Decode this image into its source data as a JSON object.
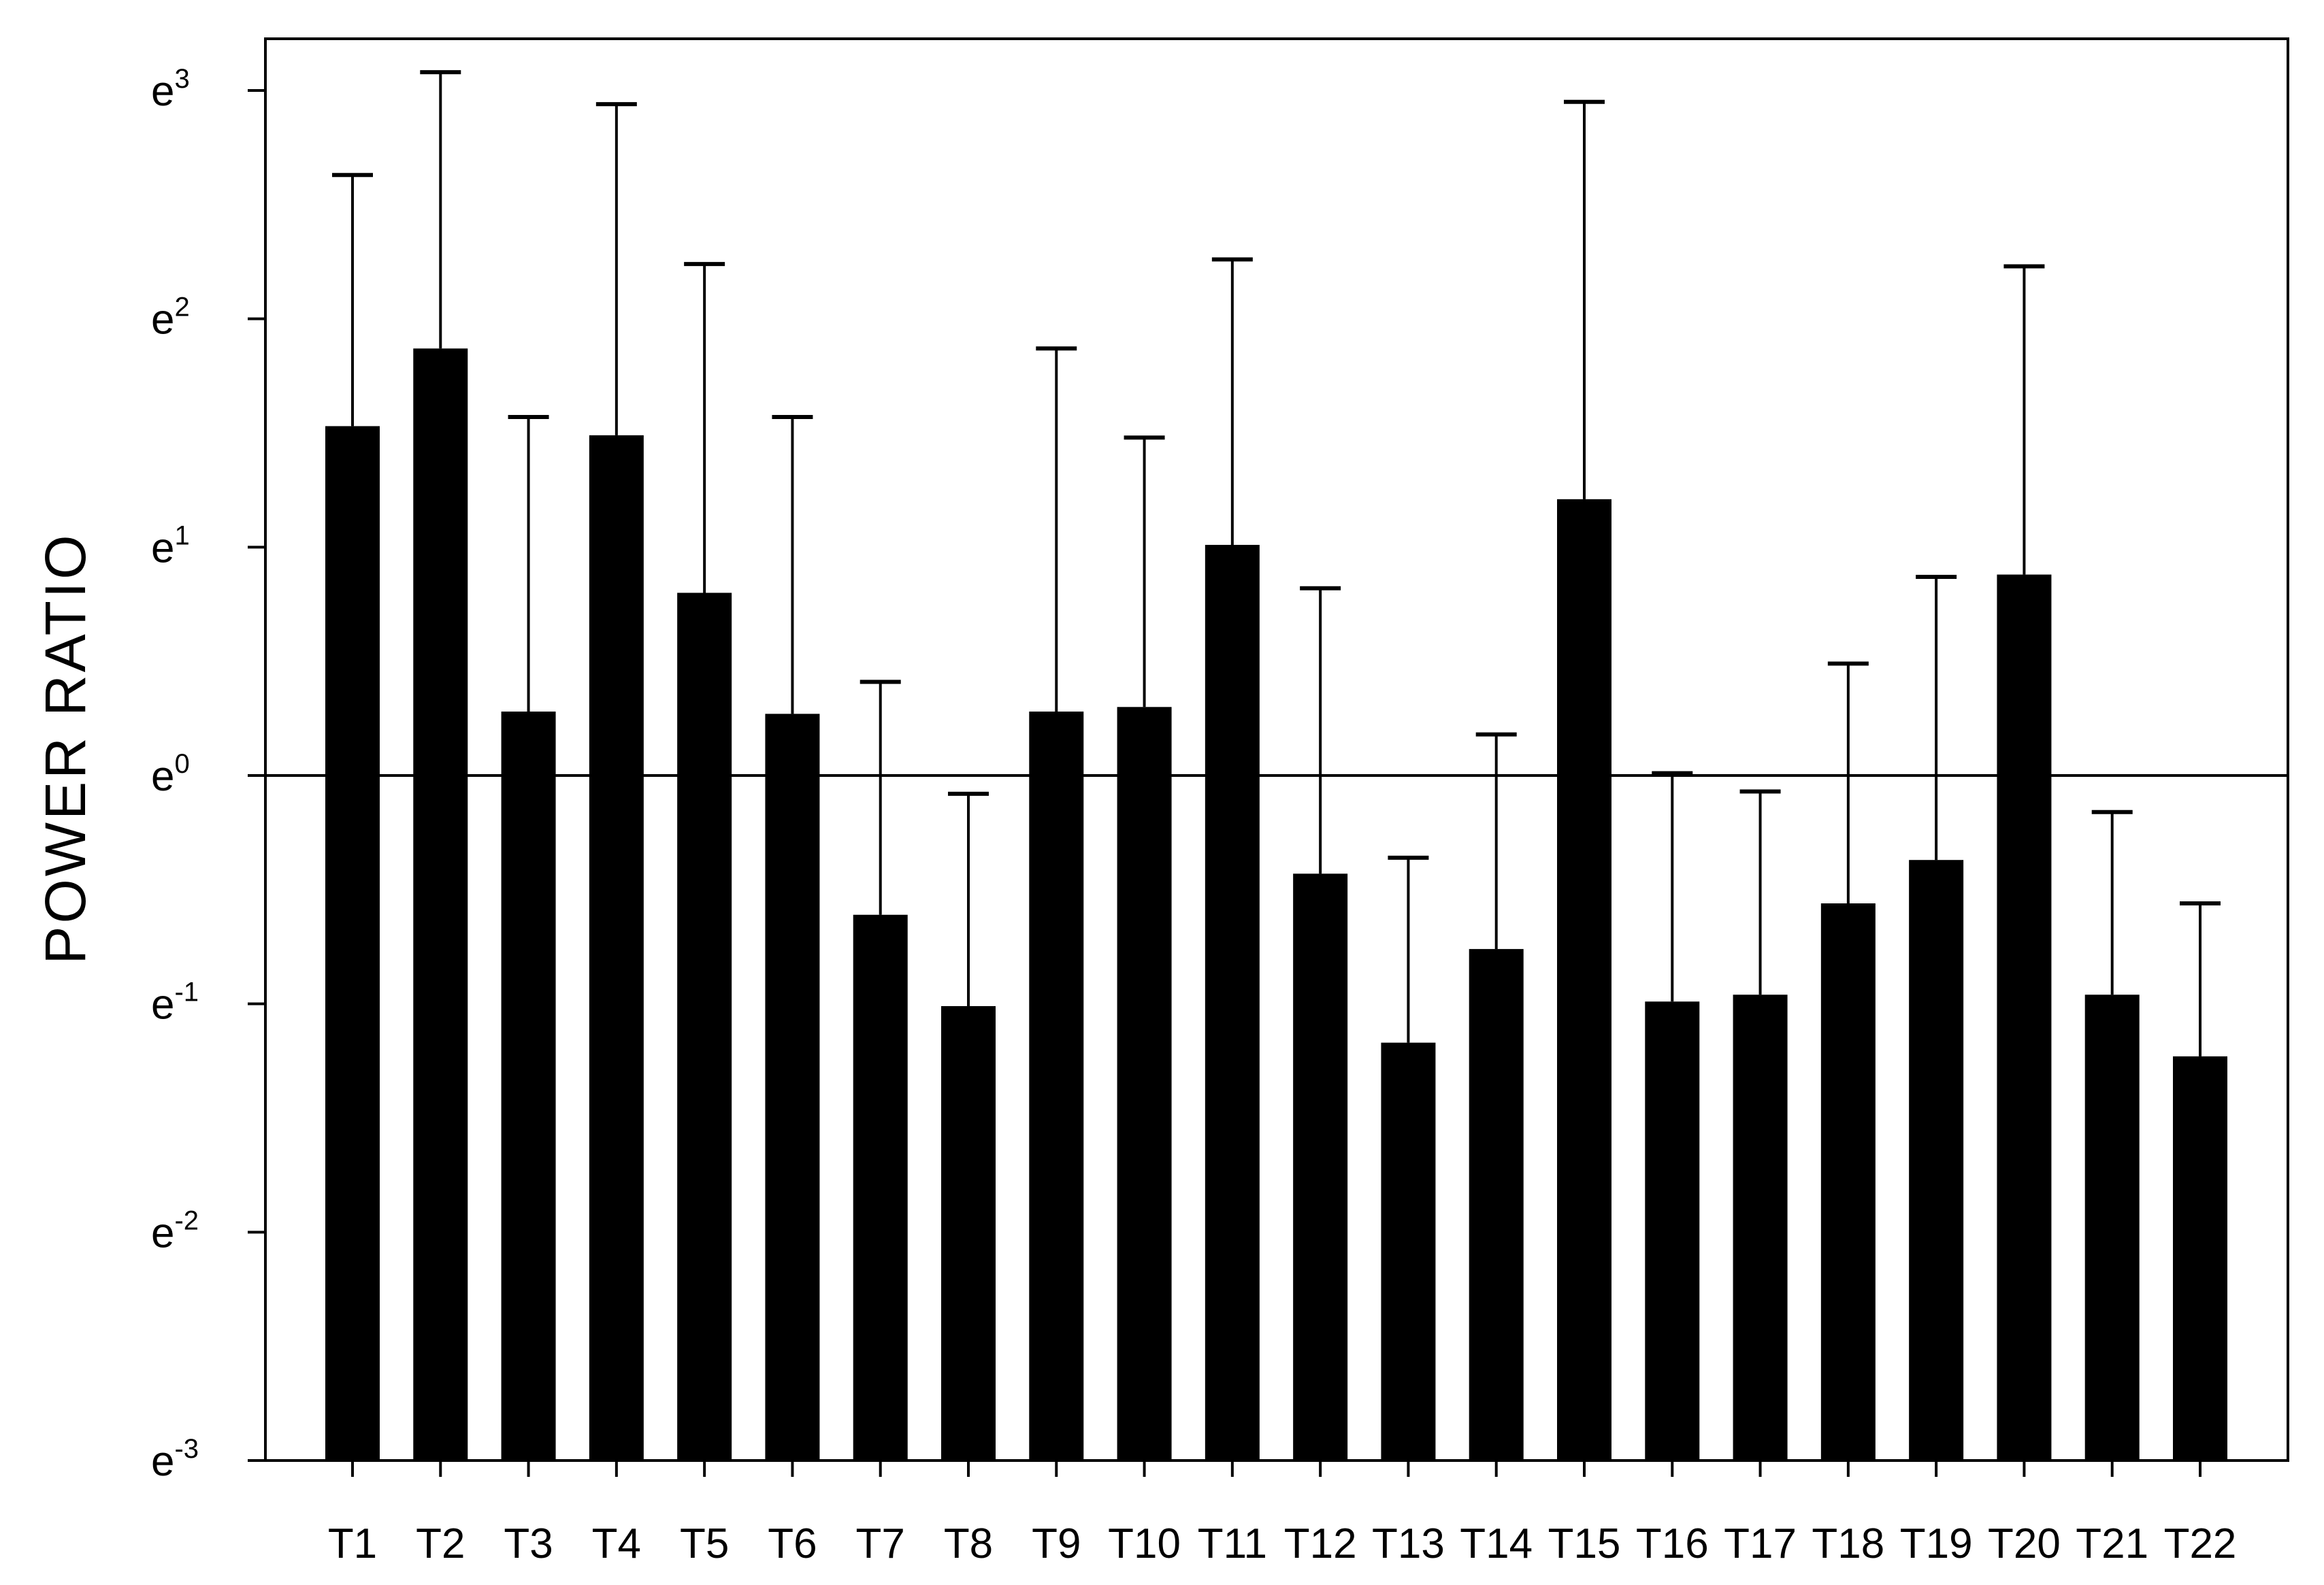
{
  "chart_data": {
    "type": "bar",
    "ylabel": "POWER  RATIO",
    "yscale": "log (natural, base e)",
    "y_tick_labels": [
      {
        "base": "e",
        "exp": "-3"
      },
      {
        "base": "e",
        "exp": "-2"
      },
      {
        "base": "e",
        "exp": "-1"
      },
      {
        "base": "e",
        "exp": "0"
      },
      {
        "base": "e",
        "exp": "1"
      },
      {
        "base": "e",
        "exp": "2"
      },
      {
        "base": "e",
        "exp": "3"
      }
    ],
    "ylim_exponent": [
      -3,
      3.22
    ],
    "reference_line_exponent": 0,
    "grid": false,
    "legend": "none",
    "bar_color": "#000000",
    "categories": [
      "T1",
      "T2",
      "T3",
      "T4",
      "T5",
      "T6",
      "T7",
      "T8",
      "T9",
      "T10",
      "T11",
      "T12",
      "T13",
      "T14",
      "T15",
      "T16",
      "T17",
      "T18",
      "T19",
      "T20",
      "T21",
      "T22"
    ],
    "values_exponent": [
      1.53,
      1.87,
      0.28,
      1.49,
      0.8,
      0.27,
      -0.61,
      -1.01,
      0.28,
      0.3,
      1.01,
      -0.43,
      -1.17,
      -0.76,
      1.21,
      -0.99,
      -0.96,
      -0.56,
      -0.37,
      0.88,
      -0.96,
      -1.23
    ],
    "error_upper_exponent": [
      2.63,
      3.08,
      1.57,
      2.94,
      2.24,
      1.57,
      0.41,
      -0.08,
      1.87,
      1.48,
      2.26,
      0.82,
      -0.36,
      0.18,
      2.95,
      0.01,
      -0.07,
      0.49,
      0.87,
      2.23,
      -0.16,
      -0.56
    ]
  }
}
